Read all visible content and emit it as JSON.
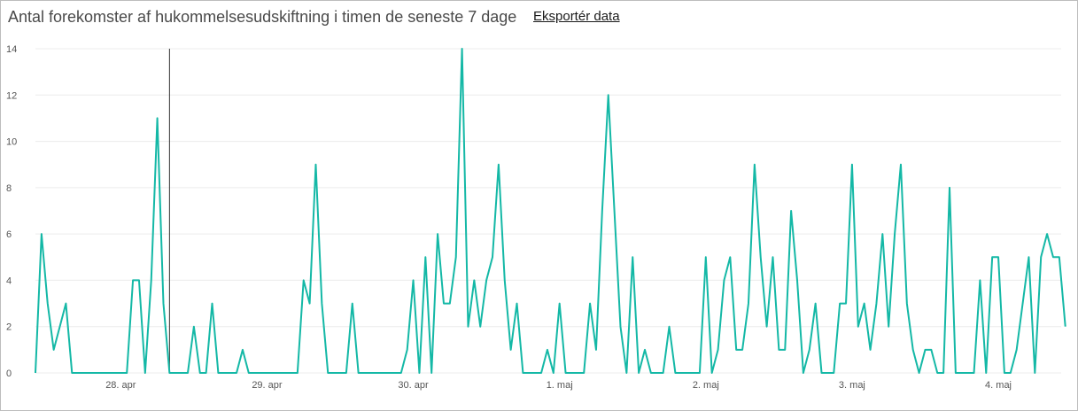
{
  "header": {
    "title": "Antal forekomster af hukommelsesudskiftning i timen de seneste 7 dage",
    "export_label": "Eksportér data"
  },
  "colors": {
    "line": "#14b8a6",
    "grid": "#ececec",
    "cursor": "#333333",
    "text": "#555555"
  },
  "chart_data": {
    "type": "line",
    "title": "Antal forekomster af hukommelsesudskiftning i timen de seneste 7 dage",
    "xlabel": "",
    "ylabel": "",
    "ylim": [
      0,
      14
    ],
    "yticks": [
      0,
      2,
      4,
      6,
      8,
      10,
      12,
      14
    ],
    "grid": true,
    "x_tick_labels": [
      "28. apr",
      "29. apr",
      "30. apr",
      "1. maj",
      "2. maj",
      "3. maj",
      "4. maj"
    ],
    "x_tick_index": [
      14,
      38,
      62,
      86,
      110,
      134,
      158
    ],
    "cursor_index": 22,
    "series": [
      {
        "values": [
          0,
          6,
          3,
          1,
          2,
          3,
          0,
          0,
          0,
          0,
          0,
          0,
          0,
          0,
          0,
          0,
          4,
          4,
          0,
          4,
          11,
          3,
          0,
          0,
          0,
          0,
          2,
          0,
          0,
          3,
          0,
          0,
          0,
          0,
          1,
          0,
          0,
          0,
          0,
          0,
          0,
          0,
          0,
          0,
          4,
          3,
          9,
          3,
          0,
          0,
          0,
          0,
          3,
          0,
          0,
          0,
          0,
          0,
          0,
          0,
          0,
          1,
          4,
          0,
          5,
          0,
          6,
          3,
          3,
          5,
          14,
          2,
          4,
          2,
          4,
          5,
          9,
          4,
          1,
          3,
          0,
          0,
          0,
          0,
          1,
          0,
          3,
          0,
          0,
          0,
          0,
          3,
          1,
          7,
          12,
          7,
          2,
          0,
          5,
          0,
          1,
          0,
          0,
          0,
          2,
          0,
          0,
          0,
          0,
          0,
          5,
          0,
          1,
          4,
          5,
          1,
          1,
          3,
          9,
          5,
          2,
          5,
          1,
          1,
          7,
          4,
          0,
          1,
          3,
          0,
          0,
          0,
          3,
          3,
          9,
          2,
          3,
          1,
          3,
          6,
          2,
          6,
          9,
          3,
          1,
          0,
          1,
          1,
          0,
          0,
          8,
          0,
          0,
          0,
          0,
          4,
          0,
          5,
          5,
          0,
          0,
          1,
          3,
          5,
          0,
          5,
          6,
          5,
          5,
          2
        ]
      }
    ]
  }
}
